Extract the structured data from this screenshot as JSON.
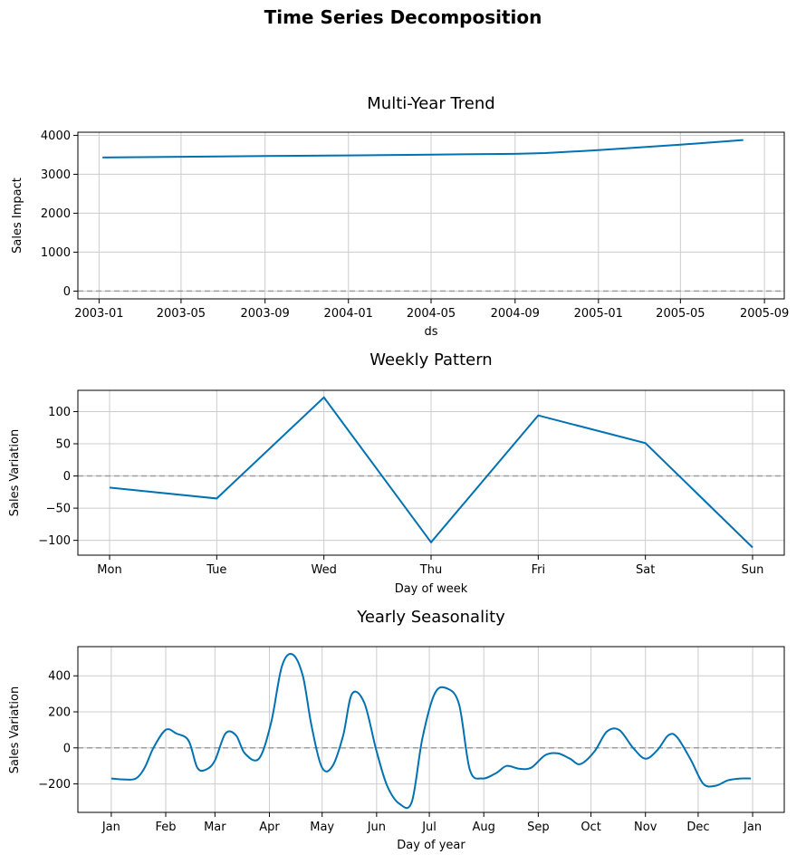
{
  "figure": {
    "title": "Time Series Decomposition"
  },
  "colors": {
    "line": "#0072B2",
    "zero_line": "#9e9e9e",
    "grid": "#cccccc"
  },
  "chart_data": [
    {
      "type": "line",
      "title": "Multi-Year Trend",
      "xlabel": "ds",
      "ylabel": "Sales Impact",
      "x_tick_labels": [
        "2003-01",
        "2003-05",
        "2003-09",
        "2004-01",
        "2004-05",
        "2004-09",
        "2005-01",
        "2005-05",
        "2005-09"
      ],
      "y_ticks": [
        0,
        1000,
        2000,
        3000,
        4000
      ],
      "ylim": [
        -200,
        4080
      ],
      "grid": true,
      "series": [
        {
          "x": [
            "2003-01-06",
            "2003-05-01",
            "2003-09-01",
            "2004-01-01",
            "2004-05-01",
            "2004-09-01",
            "2004-10-15",
            "2005-01-01",
            "2005-05-01",
            "2005-08-01"
          ],
          "y": [
            3430,
            3450,
            3470,
            3485,
            3505,
            3525,
            3545,
            3620,
            3760,
            3880
          ]
        }
      ]
    },
    {
      "type": "line",
      "title": "Weekly Pattern",
      "xlabel": "Day of week",
      "ylabel": "Sales Variation",
      "categories": [
        "Mon",
        "Tue",
        "Wed",
        "Thu",
        "Fri",
        "Sat",
        "Sun"
      ],
      "y_ticks": [
        -100,
        -50,
        0,
        50,
        100
      ],
      "ylim": [
        -123,
        133
      ],
      "grid": true,
      "series": [
        {
          "values": [
            -18,
            -35,
            122,
            -103,
            94,
            51,
            -111
          ]
        }
      ]
    },
    {
      "type": "line",
      "title": "Yearly Seasonality",
      "xlabel": "Day of year",
      "ylabel": "Sales Variation",
      "x_tick_labels": [
        "Jan",
        "Feb",
        "Mar",
        "Apr",
        "May",
        "Jun",
        "Jul",
        "Aug",
        "Sep",
        "Oct",
        "Nov",
        "Dec",
        "Jan"
      ],
      "y_ticks": [
        -200,
        0,
        200,
        400
      ],
      "ylim": [
        -358,
        562
      ],
      "grid": true,
      "series": [
        {
          "x": [
            1,
            8,
            15,
            20,
            25,
            32,
            38,
            45,
            50,
            55,
            60,
            66,
            72,
            77,
            85,
            92,
            98,
            104,
            110,
            115,
            121,
            127,
            133,
            138,
            145,
            152,
            158,
            165,
            172,
            178,
            185,
            192,
            199,
            205,
            212,
            220,
            226,
            233,
            240,
            248,
            255,
            262,
            268,
            276,
            283,
            290,
            298,
            305,
            312,
            318,
            323,
            331,
            338,
            345,
            352,
            359,
            365
          ],
          "y": [
            -170,
            -175,
            -170,
            -110,
            0,
            100,
            80,
            40,
            -110,
            -120,
            -70,
            80,
            70,
            -30,
            -60,
            140,
            450,
            520,
            400,
            120,
            -110,
            -100,
            70,
            300,
            250,
            -20,
            -210,
            -310,
            -300,
            50,
            300,
            330,
            240,
            -120,
            -170,
            -140,
            -100,
            -115,
            -110,
            -40,
            -30,
            -60,
            -90,
            -20,
            90,
            100,
            0,
            -60,
            -10,
            70,
            60,
            -70,
            -200,
            -210,
            -180,
            -170,
            -170
          ]
        }
      ]
    }
  ]
}
